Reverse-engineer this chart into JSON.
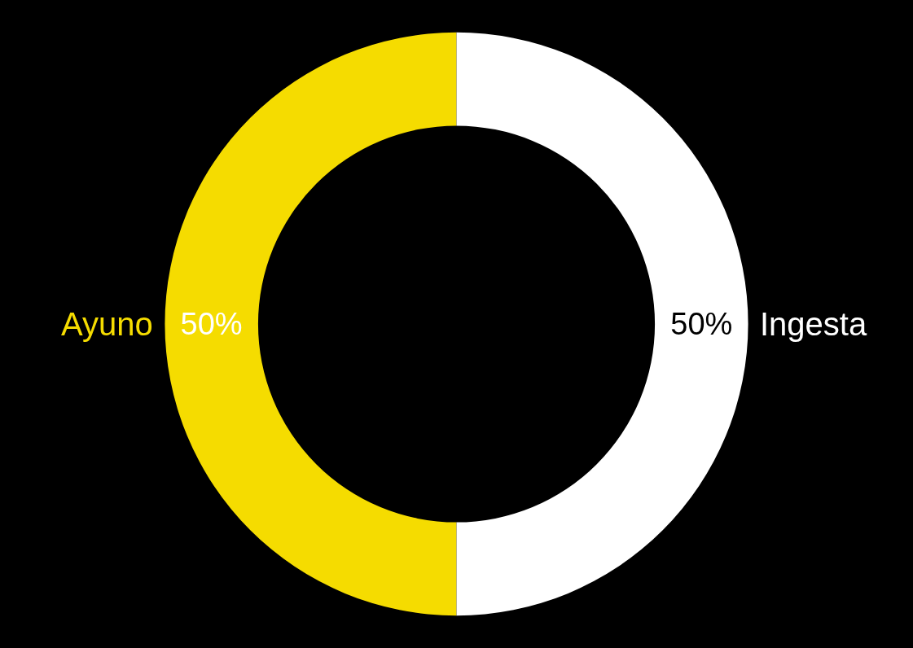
{
  "chart_data": {
    "type": "donut",
    "categories": [
      "Ayuno",
      "Ingesta"
    ],
    "values": [
      50,
      50
    ],
    "value_labels": [
      "50%",
      "50%"
    ],
    "colors": [
      "#f5dc00",
      "#ffffff"
    ]
  }
}
